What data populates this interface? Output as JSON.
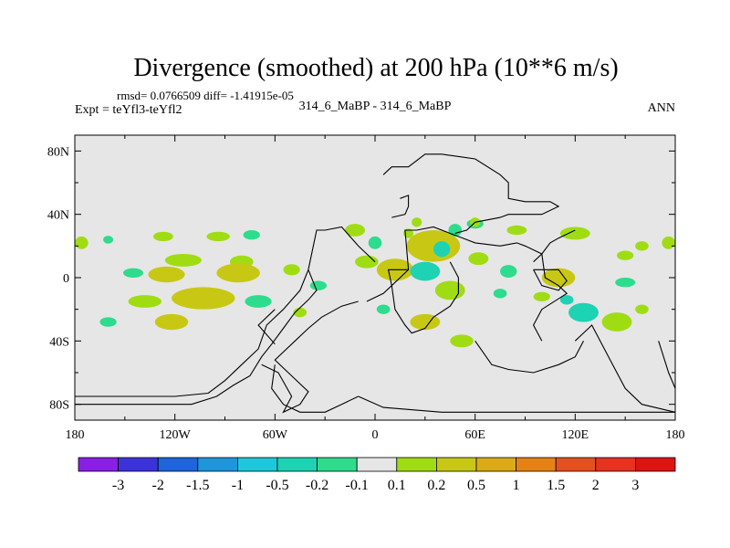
{
  "chart_data": {
    "type": "heatmap",
    "title": "Divergence (smoothed) at 200 hPa (10**6 m/s)",
    "stats_line": "rmsd= 0.0766509 diff= -1.41915e-05",
    "left_label": "Expt = teYfl3-teYfl2",
    "center_label": "314_6_MaBP - 314_6_MaBP",
    "right_label": "ANN",
    "xlim": [
      -180,
      180
    ],
    "ylim": [
      -90,
      90
    ],
    "x_ticks": [
      {
        "value": -180,
        "label": "180"
      },
      {
        "value": -120,
        "label": "120W"
      },
      {
        "value": -60,
        "label": "60W"
      },
      {
        "value": 0,
        "label": "0"
      },
      {
        "value": 60,
        "label": "60E"
      },
      {
        "value": 120,
        "label": "120E"
      },
      {
        "value": 180,
        "label": "180"
      }
    ],
    "y_ticks": [
      {
        "value": 80,
        "label": "80N"
      },
      {
        "value": 40,
        "label": "40N"
      },
      {
        "value": 0,
        "label": "0"
      },
      {
        "value": -40,
        "label": "40S"
      },
      {
        "value": -80,
        "label": "80S"
      }
    ],
    "colorbar": {
      "labels": [
        "-3",
        "-2",
        "-1.5",
        "-1",
        "-0.5",
        "-0.2",
        "-0.1",
        "0.1",
        "0.2",
        "0.5",
        "1",
        "1.5",
        "2",
        "3"
      ],
      "colors": [
        "#8a1ee6",
        "#3c32dc",
        "#1e64dc",
        "#1e96dc",
        "#1ec8dc",
        "#1ed2b4",
        "#2ddc8c",
        "#e6e6e6",
        "#a0dc14",
        "#c8c814",
        "#dcaa14",
        "#e68214",
        "#e6501e",
        "#e6321e",
        "#dc1414"
      ]
    },
    "background_color": "#e6e6e6",
    "features": [
      {
        "lon": -176,
        "lat": 22,
        "a": 4,
        "b": 4,
        "v": 0.3
      },
      {
        "lon": 176,
        "lat": 22,
        "a": 4,
        "b": 4,
        "v": 0.3
      },
      {
        "lon": -160,
        "lat": 24,
        "a": 3,
        "b": 2.5,
        "v": -0.3
      },
      {
        "lon": -127,
        "lat": 26,
        "a": 6,
        "b": 3,
        "v": 0.3
      },
      {
        "lon": -94,
        "lat": 26,
        "a": 7,
        "b": 3,
        "v": 0.3
      },
      {
        "lon": -74,
        "lat": 27,
        "a": 5,
        "b": 3,
        "v": -0.3
      },
      {
        "lon": -115,
        "lat": 11,
        "a": 11,
        "b": 4,
        "v": 0.3
      },
      {
        "lon": -80,
        "lat": 10,
        "a": 7,
        "b": 4,
        "v": 0.3
      },
      {
        "lon": -145,
        "lat": 3,
        "a": 6,
        "b": 3,
        "v": -0.3
      },
      {
        "lon": -125,
        "lat": 2,
        "a": 11,
        "b": 5,
        "v": 0.6
      },
      {
        "lon": -82,
        "lat": 3,
        "a": 13,
        "b": 6,
        "v": 0.7
      },
      {
        "lon": -50,
        "lat": 5,
        "a": 5,
        "b": 3.5,
        "v": 0.3
      },
      {
        "lon": -138,
        "lat": -15,
        "a": 10,
        "b": 4,
        "v": 0.3
      },
      {
        "lon": -103,
        "lat": -13,
        "a": 19,
        "b": 7,
        "v": 0.6
      },
      {
        "lon": -70,
        "lat": -15,
        "a": 8,
        "b": 4,
        "v": -0.3
      },
      {
        "lon": -160,
        "lat": -28,
        "a": 5,
        "b": 3,
        "v": -0.3
      },
      {
        "lon": -122,
        "lat": -28,
        "a": 10,
        "b": 5,
        "v": 0.6
      },
      {
        "lon": -12,
        "lat": 30,
        "a": 6,
        "b": 4,
        "v": 0.3
      },
      {
        "lon": -5,
        "lat": 10,
        "a": 7,
        "b": 4,
        "v": 0.3
      },
      {
        "lon": 0,
        "lat": 22,
        "a": 4,
        "b": 4,
        "v": -0.3
      },
      {
        "lon": 35,
        "lat": 20,
        "a": 16,
        "b": 10,
        "v": 0.6
      },
      {
        "lon": 40,
        "lat": 18,
        "a": 5,
        "b": 5,
        "v": -0.5
      },
      {
        "lon": 12,
        "lat": 5,
        "a": 11,
        "b": 7,
        "v": 0.7
      },
      {
        "lon": 48,
        "lat": 30,
        "a": 4,
        "b": 4,
        "v": -0.3
      },
      {
        "lon": 62,
        "lat": 12,
        "a": 6,
        "b": 4,
        "v": 0.3
      },
      {
        "lon": 30,
        "lat": 4,
        "a": 9,
        "b": 6,
        "v": -0.5
      },
      {
        "lon": 45,
        "lat": -8,
        "a": 9,
        "b": 6,
        "v": 0.3
      },
      {
        "lon": 80,
        "lat": 4,
        "a": 5,
        "b": 4,
        "v": -0.3
      },
      {
        "lon": 110,
        "lat": 0,
        "a": 10,
        "b": 6,
        "v": 0.7
      },
      {
        "lon": 150,
        "lat": 14,
        "a": 5,
        "b": 3,
        "v": 0.3
      },
      {
        "lon": 125,
        "lat": -22,
        "a": 9,
        "b": 6,
        "v": -0.5
      },
      {
        "lon": 145,
        "lat": -28,
        "a": 9,
        "b": 6,
        "v": 0.3
      },
      {
        "lon": 150,
        "lat": -3,
        "a": 6,
        "b": 3,
        "v": -0.3
      },
      {
        "lon": 160,
        "lat": -20,
        "a": 4,
        "b": 3,
        "v": 0.3
      },
      {
        "lon": 75,
        "lat": -10,
        "a": 4,
        "b": 3,
        "v": -0.3
      },
      {
        "lon": 30,
        "lat": -28,
        "a": 9,
        "b": 5,
        "v": 0.6
      },
      {
        "lon": 52,
        "lat": -40,
        "a": 7,
        "b": 4,
        "v": 0.3
      },
      {
        "lon": 60,
        "lat": 34,
        "a": 5,
        "b": 3,
        "v": -0.3
      },
      {
        "lon": 60,
        "lat": 35,
        "a": 3,
        "b": 3,
        "v": 0.3
      },
      {
        "lon": 85,
        "lat": 30,
        "a": 6,
        "b": 3,
        "v": 0.3
      },
      {
        "lon": 120,
        "lat": 28,
        "a": 9,
        "b": 4,
        "v": 0.3
      },
      {
        "lon": 160,
        "lat": 20,
        "a": 4,
        "b": 3,
        "v": 0.3
      },
      {
        "lon": 115,
        "lat": -14,
        "a": 4,
        "b": 3,
        "v": -0.5
      },
      {
        "lon": 100,
        "lat": -12,
        "a": 5,
        "b": 3,
        "v": 0.3
      },
      {
        "lon": -34,
        "lat": -5,
        "a": 5,
        "b": 3,
        "v": -0.3
      },
      {
        "lon": 20,
        "lat": 28,
        "a": 3,
        "b": 3,
        "v": 0.3
      },
      {
        "lon": 25,
        "lat": 35,
        "a": 3,
        "b": 3,
        "v": 0.3
      },
      {
        "lon": 5,
        "lat": -20,
        "a": 4,
        "b": 3,
        "v": -0.3
      },
      {
        "lon": -45,
        "lat": -22,
        "a": 4,
        "b": 3,
        "v": 0.3
      }
    ],
    "coastlines": [
      [
        [
          -180,
          -75
        ],
        [
          -150,
          -75
        ],
        [
          -120,
          -75
        ],
        [
          -100,
          -73
        ],
        [
          -90,
          -65
        ],
        [
          -80,
          -55
        ],
        [
          -70,
          -45
        ],
        [
          -65,
          -30
        ],
        [
          -55,
          -20
        ],
        [
          -45,
          -8
        ],
        [
          -40,
          5
        ],
        [
          -35,
          30
        ],
        [
          -30,
          30
        ],
        [
          -20,
          32
        ],
        [
          -10,
          20
        ],
        [
          -5,
          15
        ],
        [
          0,
          10
        ]
      ],
      [
        [
          -180,
          -80
        ],
        [
          -140,
          -80
        ],
        [
          -110,
          -80
        ],
        [
          -95,
          -75
        ],
        [
          -85,
          -68
        ],
        [
          -75,
          -62
        ],
        [
          -68,
          -50
        ],
        [
          -62,
          -42
        ],
        [
          -55,
          -32
        ],
        [
          -48,
          -22
        ],
        [
          -40,
          -14
        ],
        [
          -35,
          -8
        ],
        [
          -40,
          5
        ]
      ],
      [
        [
          -60,
          -20
        ],
        [
          -70,
          -30
        ],
        [
          -60,
          -42
        ]
      ],
      [
        [
          -68,
          -55
        ],
        [
          -58,
          -60
        ],
        [
          -50,
          -75
        ],
        [
          -55,
          -85
        ],
        [
          -45,
          -80
        ],
        [
          -40,
          -72
        ],
        [
          -50,
          -62
        ],
        [
          -60,
          -52
        ],
        [
          -48,
          -40
        ],
        [
          -40,
          -32
        ],
        [
          -32,
          -25
        ],
        [
          -20,
          -18
        ],
        [
          -10,
          -15
        ]
      ],
      [
        [
          -60,
          -55
        ],
        [
          -62,
          -70
        ],
        [
          -55,
          -80
        ],
        [
          -45,
          -85
        ],
        [
          -30,
          -85
        ],
        [
          -20,
          -80
        ],
        [
          -10,
          -75
        ]
      ],
      [
        [
          -10,
          -75
        ],
        [
          5,
          -82
        ],
        [
          40,
          -85
        ],
        [
          90,
          -85
        ],
        [
          140,
          -85
        ],
        [
          180,
          -85
        ]
      ],
      [
        [
          170,
          -40
        ],
        [
          176,
          -60
        ],
        [
          180,
          -70
        ]
      ],
      [
        [
          120,
          -40
        ],
        [
          130,
          -30
        ],
        [
          140,
          -50
        ],
        [
          150,
          -70
        ],
        [
          160,
          -80
        ],
        [
          180,
          -85
        ]
      ],
      [
        [
          60,
          -40
        ],
        [
          70,
          -55
        ],
        [
          80,
          -58
        ],
        [
          95,
          -60
        ],
        [
          110,
          -55
        ],
        [
          120,
          -50
        ],
        [
          125,
          -40
        ]
      ],
      [
        [
          5,
          65
        ],
        [
          10,
          70
        ],
        [
          20,
          70
        ],
        [
          30,
          78
        ],
        [
          40,
          78
        ],
        [
          60,
          75
        ],
        [
          75,
          65
        ],
        [
          80,
          60
        ],
        [
          80,
          50
        ],
        [
          90,
          48
        ],
        [
          105,
          48
        ],
        [
          110,
          45
        ],
        [
          100,
          40
        ],
        [
          80,
          40
        ],
        [
          75,
          38
        ],
        [
          60,
          35
        ],
        [
          55,
          30
        ],
        [
          48,
          28
        ]
      ],
      [
        [
          15,
          50
        ],
        [
          20,
          52
        ],
        [
          20,
          45
        ],
        [
          18,
          40
        ],
        [
          10,
          38
        ]
      ],
      [
        [
          -5,
          -15
        ],
        [
          5,
          -10
        ],
        [
          10,
          -5
        ],
        [
          20,
          5
        ],
        [
          18,
          30
        ],
        [
          25,
          30
        ],
        [
          35,
          32
        ],
        [
          45,
          28
        ],
        [
          60,
          22
        ],
        [
          75,
          20
        ],
        [
          85,
          22
        ],
        [
          90,
          20
        ],
        [
          100,
          15
        ],
        [
          102,
          0
        ],
        [
          110,
          -5
        ],
        [
          115,
          -10
        ],
        [
          100,
          -20
        ],
        [
          95,
          -30
        ],
        [
          100,
          -40
        ]
      ],
      [
        [
          45,
          10
        ],
        [
          50,
          0
        ],
        [
          50,
          -10
        ],
        [
          45,
          -18
        ],
        [
          35,
          -25
        ],
        [
          30,
          -32
        ],
        [
          22,
          -35
        ],
        [
          18,
          -30
        ],
        [
          12,
          -20
        ],
        [
          10,
          -5
        ],
        [
          8,
          5
        ],
        [
          20,
          5
        ]
      ],
      [
        [
          95,
          5
        ],
        [
          100,
          -5
        ],
        [
          110,
          -8
        ],
        [
          115,
          -2
        ],
        [
          110,
          5
        ],
        [
          95,
          5
        ]
      ],
      [
        [
          95,
          10
        ],
        [
          100,
          15
        ],
        [
          105,
          22
        ],
        [
          110,
          25
        ],
        [
          120,
          30
        ]
      ]
    ]
  }
}
